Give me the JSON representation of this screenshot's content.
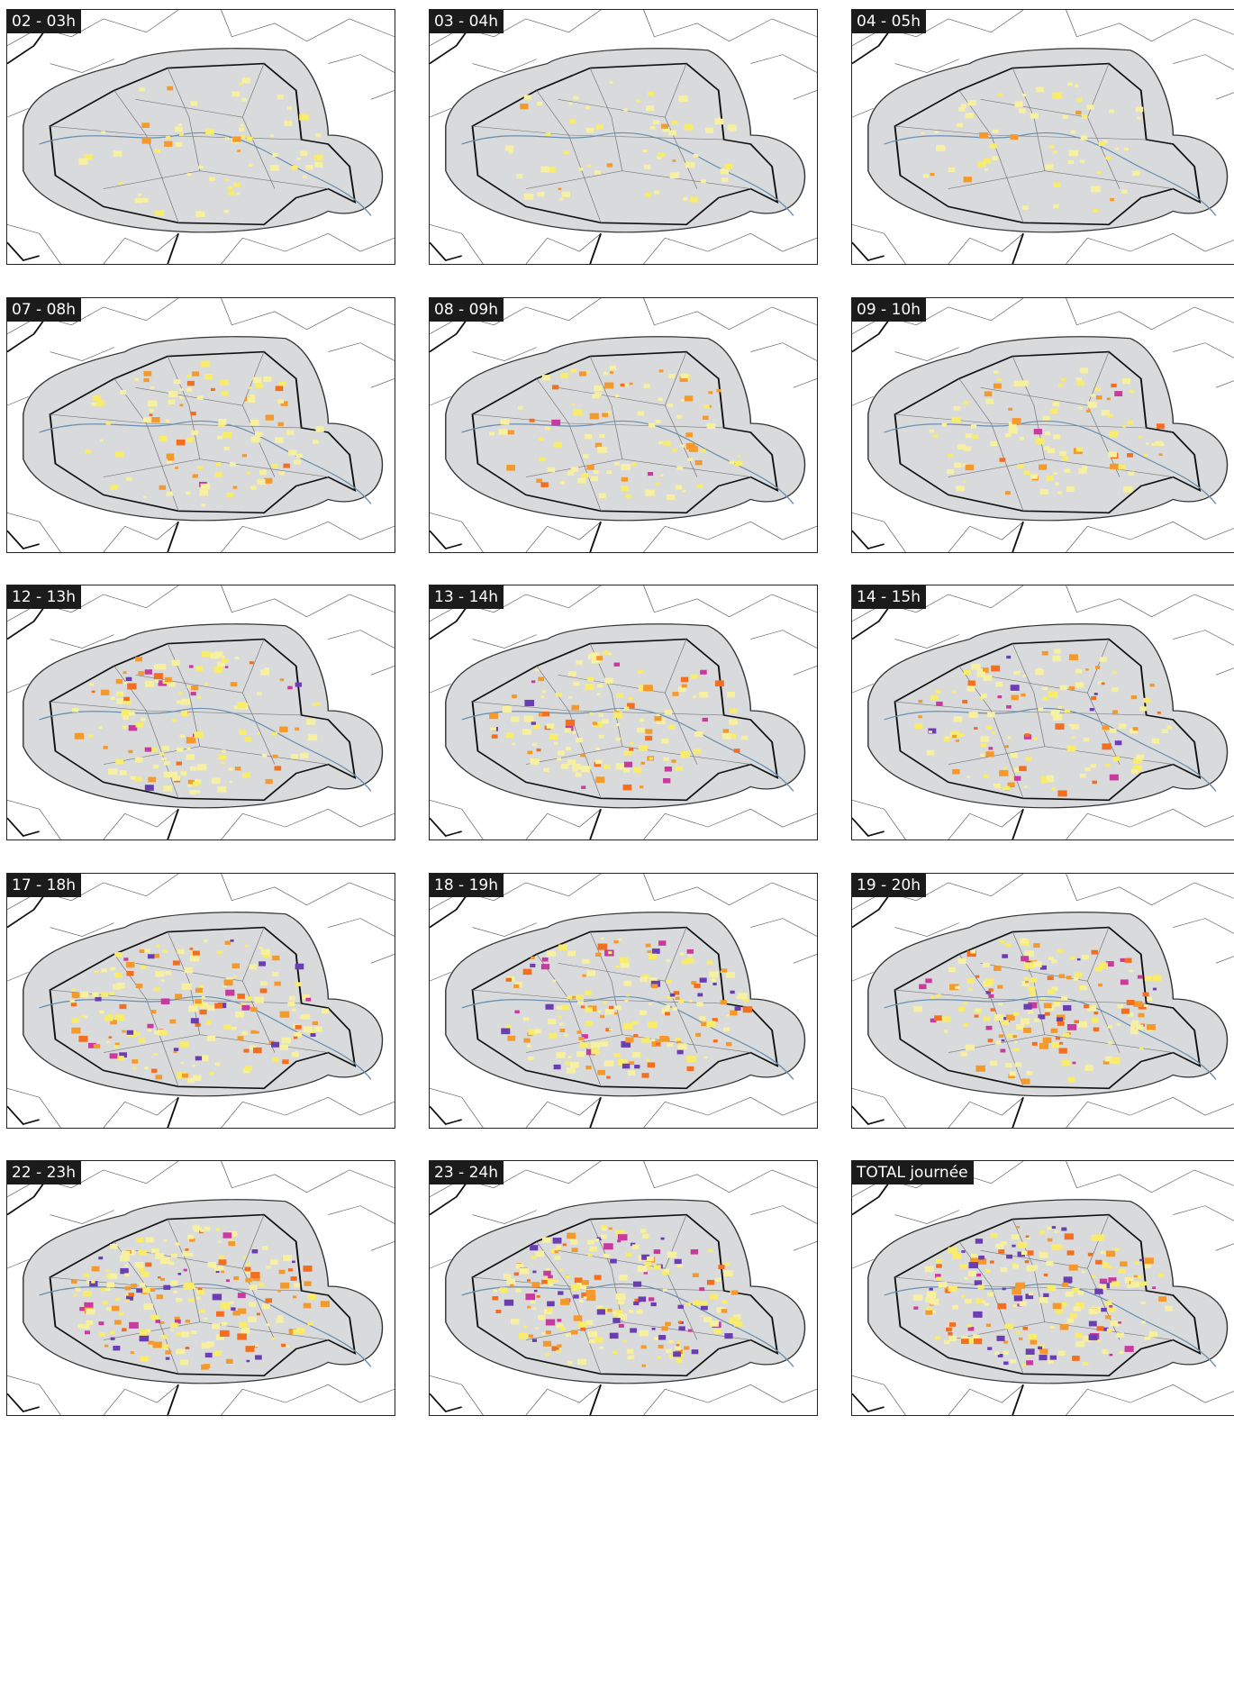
{
  "panels": [
    {
      "label": "02 - 03h"
    },
    {
      "label": "03 - 04h"
    },
    {
      "label": "04 - 05h"
    },
    {
      "label": "07 - 08h"
    },
    {
      "label": "08 - 09h"
    },
    {
      "label": "09 - 10h"
    },
    {
      "label": "12 - 13h"
    },
    {
      "label": "13 - 14h"
    },
    {
      "label": "14 - 15h"
    },
    {
      "label": "17 - 18h"
    },
    {
      "label": "18 - 19h"
    },
    {
      "label": "19 - 20h"
    },
    {
      "label": "22 - 23h"
    },
    {
      "label": "23 - 24h"
    },
    {
      "label": "TOTAL journée"
    }
  ]
}
